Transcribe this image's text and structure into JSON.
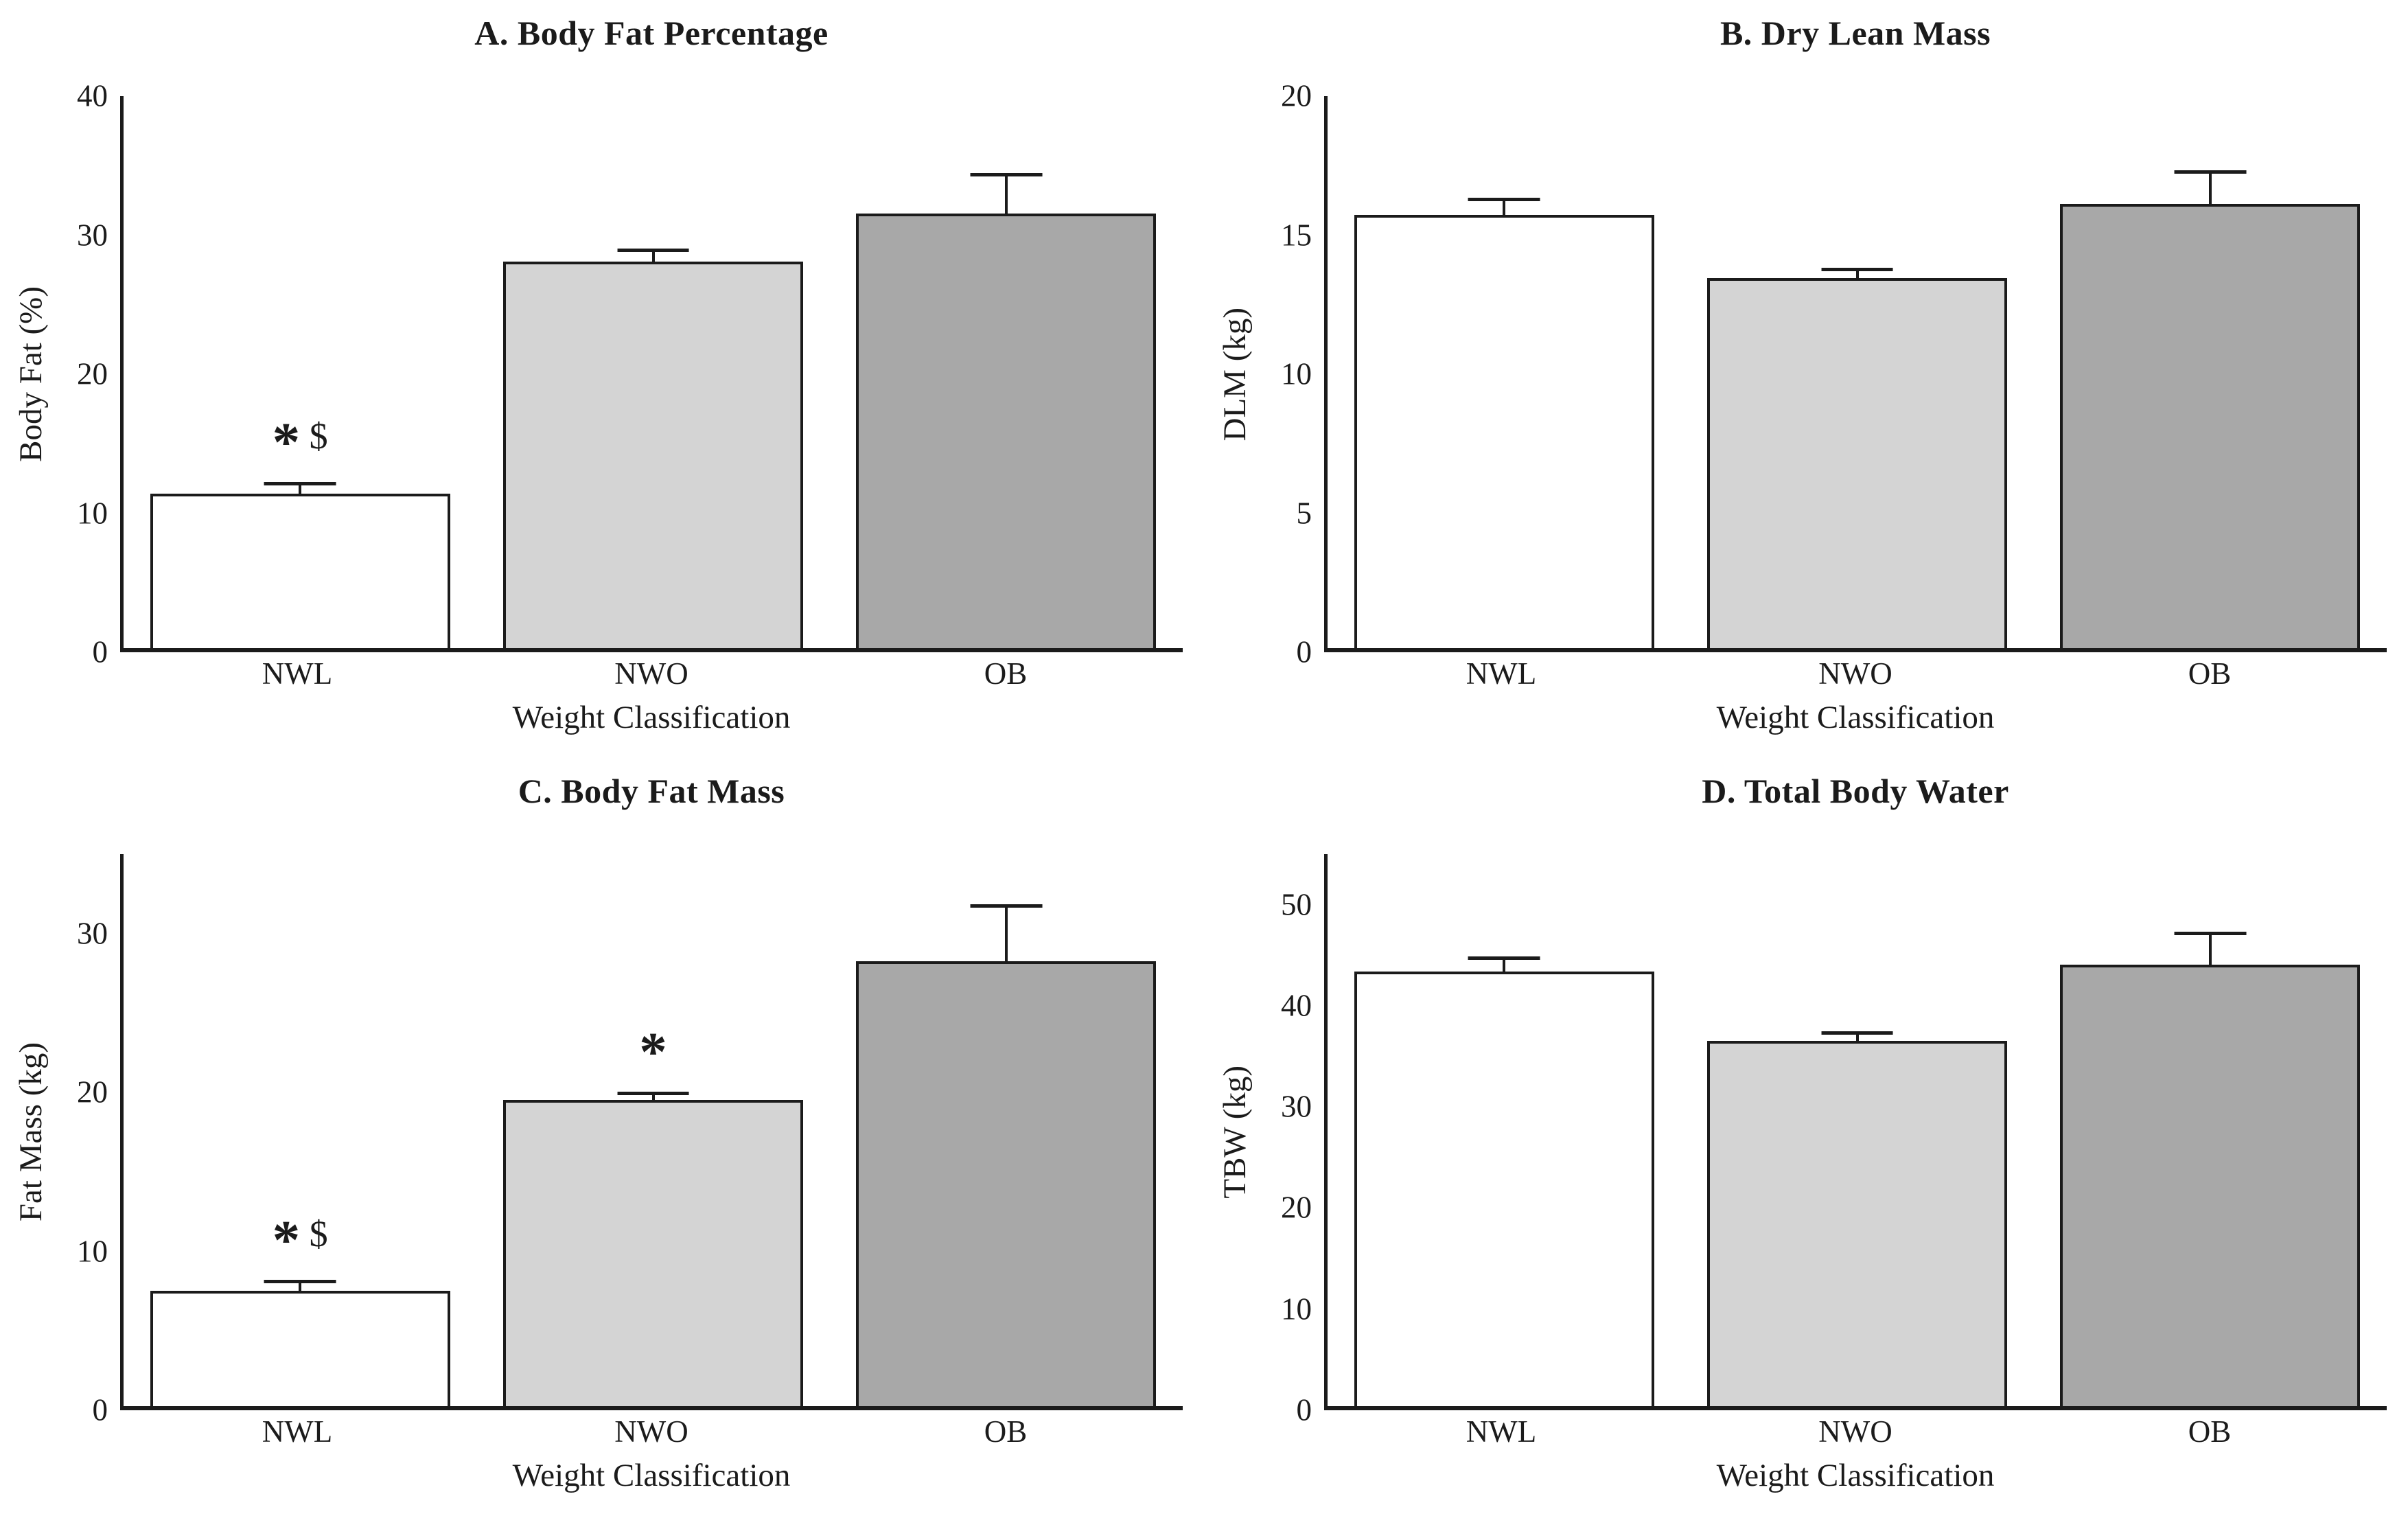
{
  "figure": {
    "background": "#ffffff",
    "axis_color": "#1b1b1b",
    "bar_border_color": "#1b1b1b",
    "bar_fill_colors": [
      "#ffffff",
      "#d4d4d4",
      "#a8a8a8"
    ]
  },
  "chart_data": [
    {
      "type": "bar",
      "panel": "A",
      "title": "A. Body Fat Percentage",
      "xlabel": "Weight Classification",
      "ylabel": "Body Fat (%)",
      "categories": [
        "NWL",
        "NWO",
        "OB"
      ],
      "values": [
        11.2,
        28.0,
        31.5
      ],
      "errors_upper": [
        0.6,
        0.7,
        2.7
      ],
      "annotations": [
        "* $",
        "",
        ""
      ],
      "ylim": [
        0,
        40
      ],
      "yticks": [
        0,
        10,
        20,
        30,
        40
      ],
      "grid": false,
      "legend": "none"
    },
    {
      "type": "bar",
      "panel": "B",
      "title": "B. Dry Lean Mass",
      "xlabel": "Weight Classification",
      "ylabel": "DLM (kg)",
      "categories": [
        "NWL",
        "NWO",
        "OB"
      ],
      "values": [
        15.7,
        13.4,
        16.1
      ],
      "errors_upper": [
        0.5,
        0.25,
        1.1
      ],
      "annotations": [
        "",
        "",
        ""
      ],
      "ylim": [
        0,
        20
      ],
      "yticks": [
        0,
        5,
        10,
        15,
        20
      ],
      "grid": false,
      "legend": "none"
    },
    {
      "type": "bar",
      "panel": "C",
      "title": "C. Body Fat Mass",
      "xlabel": "Weight Classification",
      "ylabel": "Fat Mass (kg)",
      "categories": [
        "NWL",
        "NWO",
        "OB"
      ],
      "values": [
        7.3,
        19.4,
        28.2
      ],
      "errors_upper": [
        0.5,
        0.3,
        3.4
      ],
      "annotations": [
        "* $",
        "*",
        ""
      ],
      "ylim": [
        0,
        35
      ],
      "yticks": [
        0,
        10,
        20,
        30
      ],
      "grid": false,
      "legend": "none"
    },
    {
      "type": "bar",
      "panel": "D",
      "title": "D. Total Body Water",
      "xlabel": "Weight Classification",
      "ylabel": "TBW (kg)",
      "categories": [
        "NWL",
        "NWO",
        "OB"
      ],
      "values": [
        43.3,
        36.4,
        44.0
      ],
      "errors_upper": [
        1.2,
        0.6,
        2.9
      ],
      "annotations": [
        "",
        "",
        ""
      ],
      "ylim": [
        0,
        55
      ],
      "yticks": [
        0,
        10,
        20,
        30,
        40,
        50
      ],
      "grid": false,
      "legend": "none"
    }
  ]
}
